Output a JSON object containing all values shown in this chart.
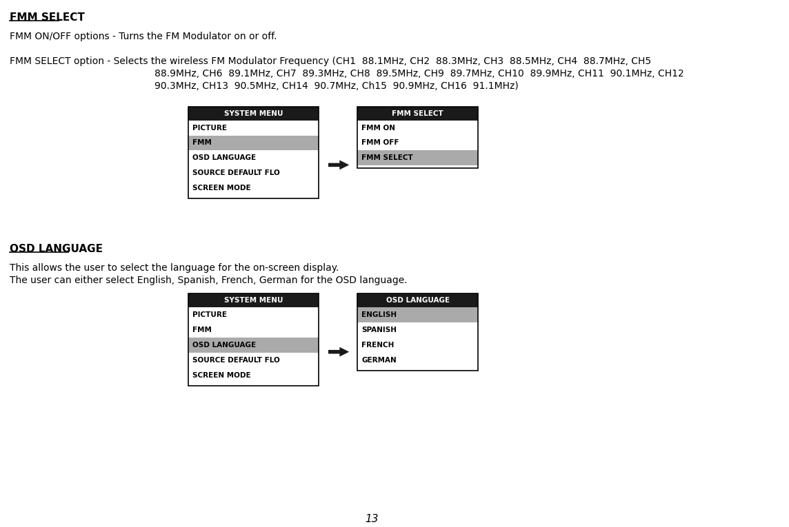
{
  "bg_color": "#ffffff",
  "page_number": "13",
  "section1": {
    "title": "FMM SELECT",
    "line1": "FMM ON/OFF options - Turns the FM Modulator on or off.",
    "line2_prefix": "FMM SELECT option - Selects the wireless FM Modulator Frequency (CH1  88.1MHz, CH2  88.3MHz, CH3  88.5MHz, CH4  88.7MHz, CH5",
    "line2_cont1": "88.9MHz, CH6  89.1MHz, CH7  89.3MHz, CH8  89.5MHz, CH9  89.7MHz, CH10  89.9MHz, CH11  90.1MHz, CH12",
    "line2_cont2": "90.3MHz, CH13  90.5MHz, CH14  90.7MHz, Ch15  90.9MHz, CH16  91.1MHz)",
    "menu1_title": "SYSTEM MENU",
    "menu1_items": [
      "PICTURE",
      "FMM",
      "OSD LANGUAGE",
      "SOURCE DEFAULT FLO",
      "SCREEN MODE"
    ],
    "menu1_highlight": 1,
    "menu2_title": "FMM SELECT",
    "menu2_items": [
      "FMM ON",
      "FMM OFF",
      "FMM SELECT"
    ],
    "menu2_highlight": 2
  },
  "section2": {
    "title": "OSD LANGUAGE",
    "line1": "This allows the user to select the language for the on-screen display.",
    "line2": "The user can either select English, Spanish, French, German for the OSD language.",
    "menu1_title": "SYSTEM MENU",
    "menu1_items": [
      "PICTURE",
      "FMM",
      "OSD LANGUAGE",
      "SOURCE DEFAULT FLO",
      "SCREEN MODE"
    ],
    "menu1_highlight": 2,
    "menu2_title": "OSD LANGUAGE",
    "menu2_items": [
      "ENGLISH",
      "SPANISH",
      "FRENCH",
      "GERMAN"
    ],
    "menu2_highlight": 0
  },
  "colors": {
    "header_bg": "#1a1a1a",
    "header_text": "#ffffff",
    "highlight_bg": "#aaaaaa",
    "highlight_text": "#000000",
    "normal_bg": "#ffffff",
    "normal_text": "#000000",
    "border": "#000000",
    "arrow": "#1a1a1a"
  },
  "fonts": {
    "title_size": 11,
    "body_size": 10,
    "menu_header_size": 7.5,
    "menu_item_size": 7.5
  }
}
